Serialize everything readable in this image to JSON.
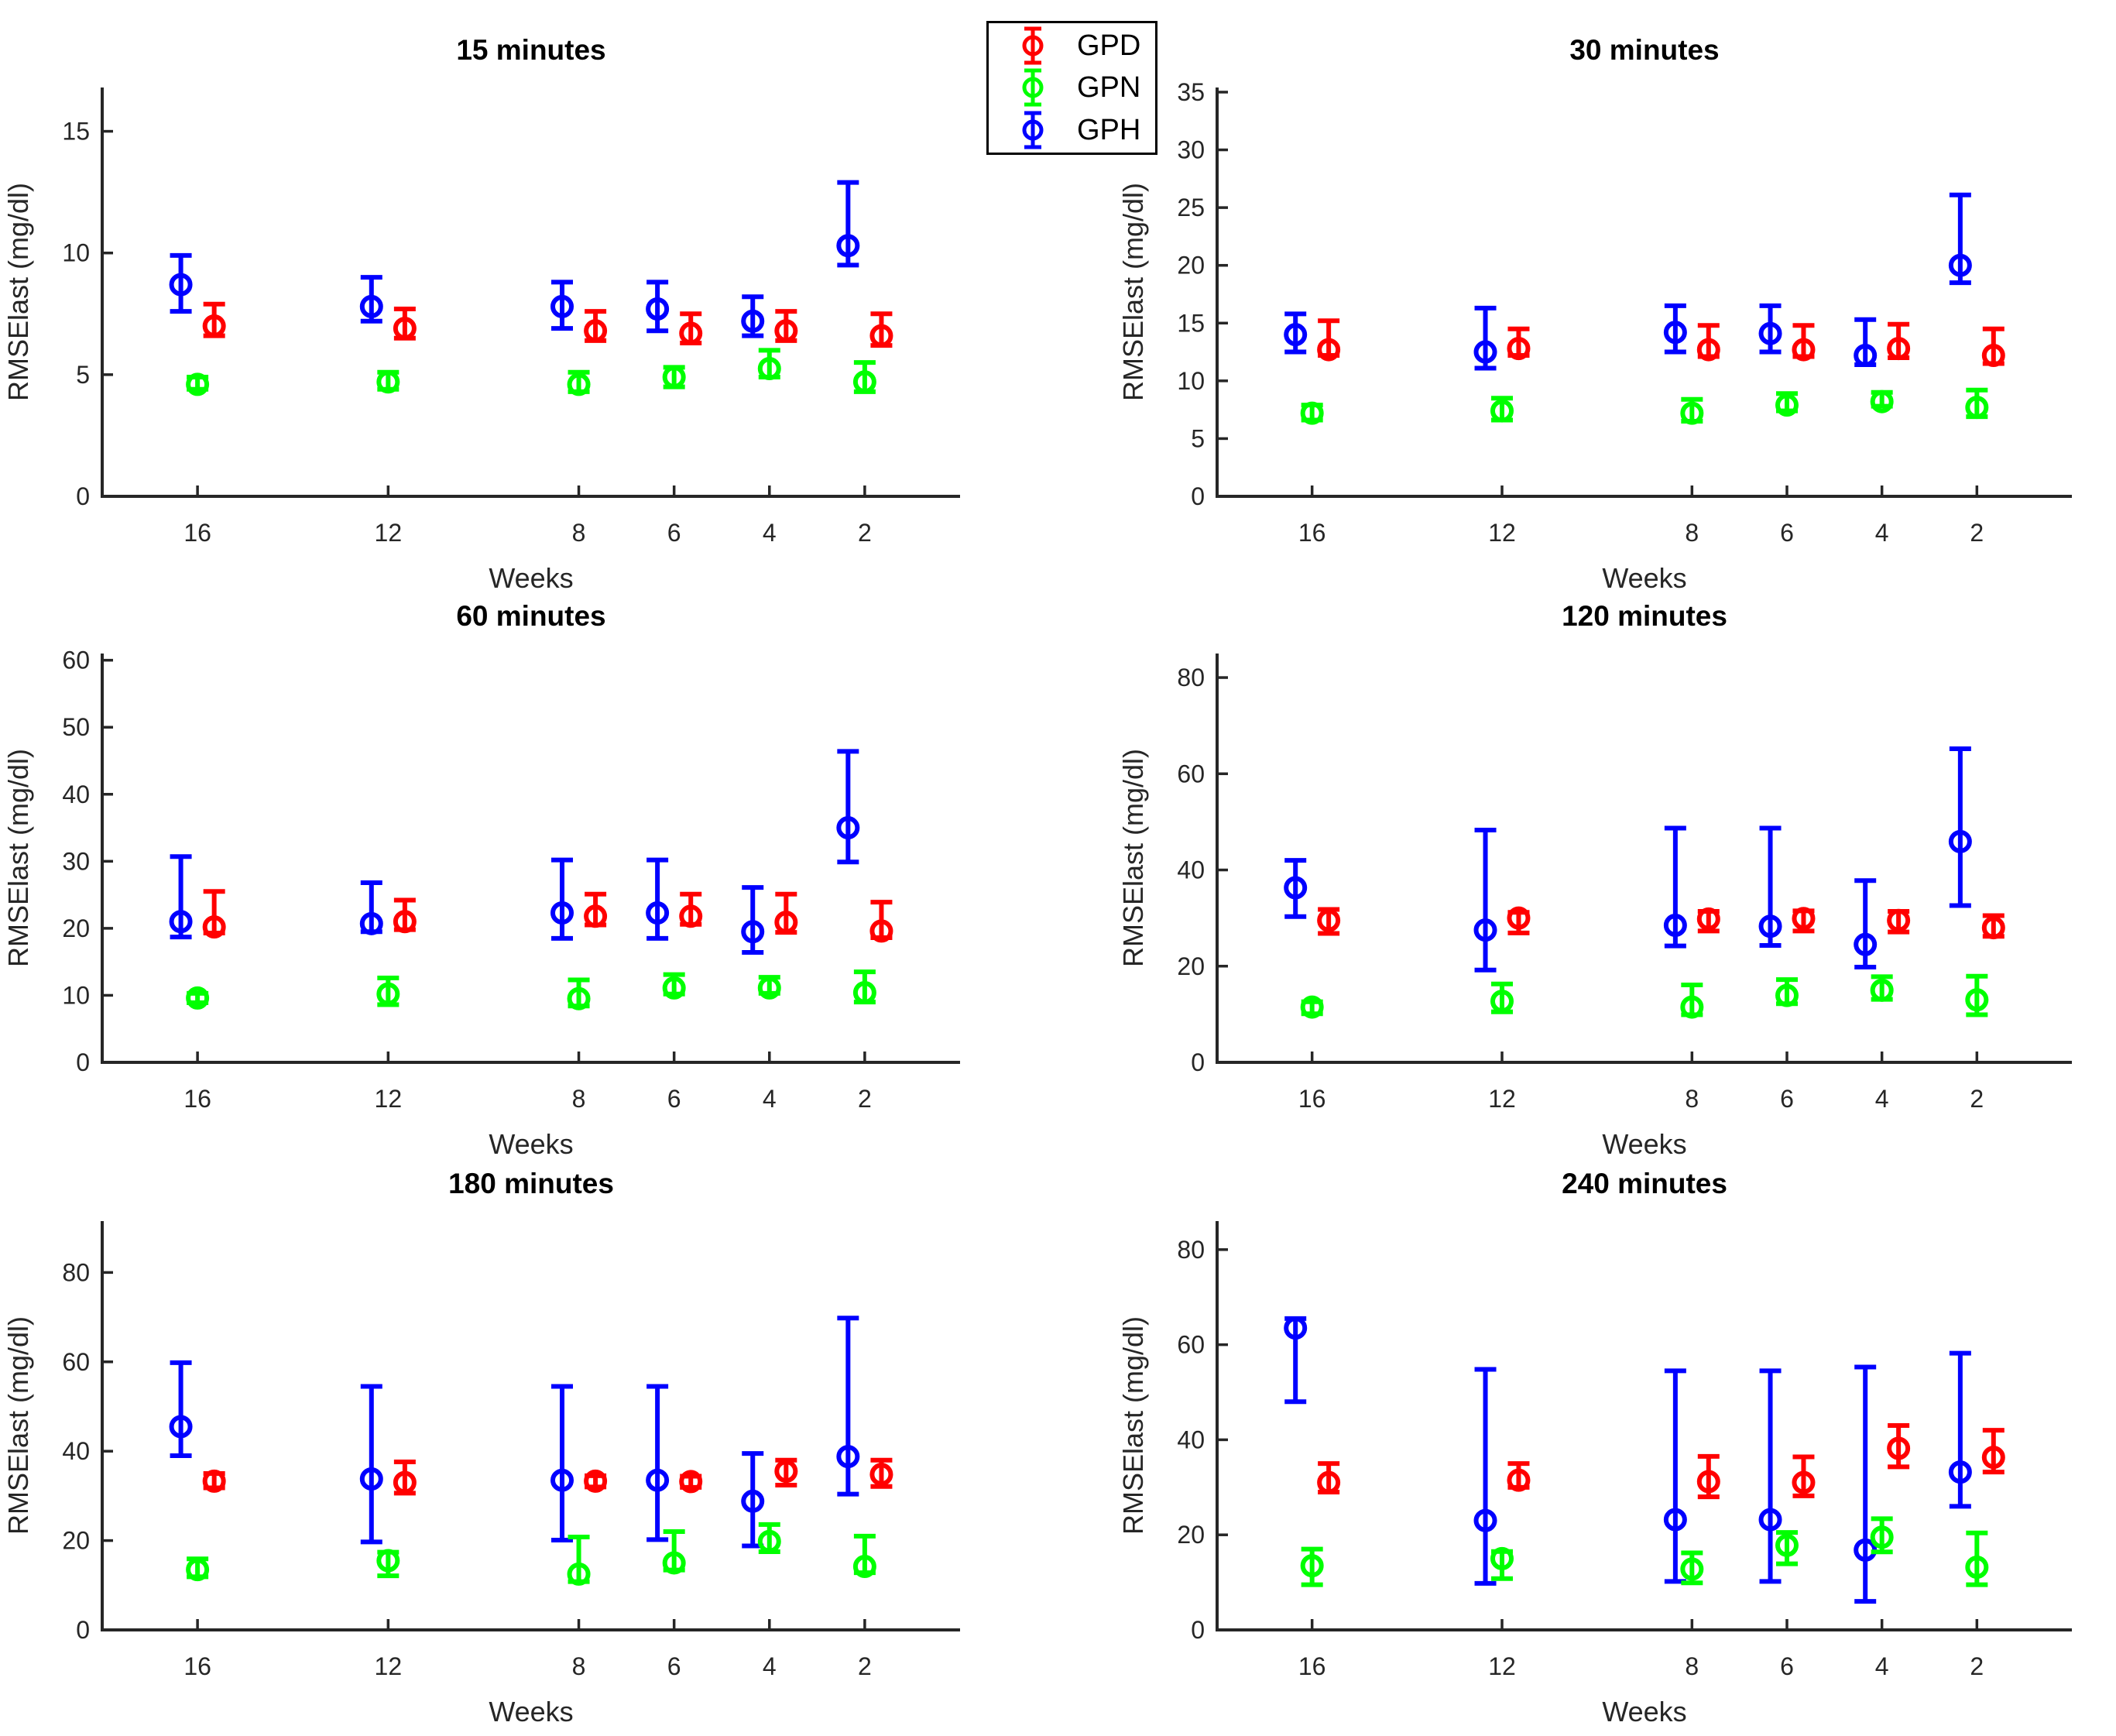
{
  "legend": {
    "entries": [
      {
        "label": "GPD",
        "color": "#ff0000"
      },
      {
        "label": "GPN",
        "color": "#00ff00"
      },
      {
        "label": "GPH",
        "color": "#0000ff"
      }
    ]
  },
  "text_color": "#262626",
  "title_color": "#000000",
  "chart_data": [
    {
      "type": "errorbar-scatter",
      "title": "15 minutes",
      "xlabel": "Weeks",
      "ylabel": "RMSElast (mg/dl)",
      "categories": [
        16,
        12,
        8,
        6,
        4,
        2
      ],
      "xlim": [
        18,
        0
      ],
      "xdir": "reverse",
      "ylim": [
        0,
        16.8
      ],
      "yticks": [
        0,
        5,
        10,
        15
      ],
      "grid": false,
      "series": [
        {
          "name": "GPD",
          "color": "#ff0000",
          "x_offset_weeks": -0.35,
          "y": [
            7.0,
            6.9,
            6.8,
            6.7,
            6.8,
            6.6
          ],
          "lo": [
            6.6,
            6.5,
            6.4,
            6.3,
            6.4,
            6.2
          ],
          "hi": [
            7.9,
            7.7,
            7.6,
            7.5,
            7.6,
            7.5
          ]
        },
        {
          "name": "GPN",
          "color": "#00ff00",
          "x_offset_weeks": 0,
          "y": [
            4.6,
            4.7,
            4.6,
            4.9,
            5.25,
            4.7
          ],
          "lo": [
            4.4,
            4.4,
            4.3,
            4.5,
            4.9,
            4.3
          ],
          "hi": [
            4.9,
            5.1,
            5.1,
            5.3,
            6.0,
            5.5
          ]
        },
        {
          "name": "GPH",
          "color": "#0000ff",
          "x_offset_weeks": 0.35,
          "y": [
            8.7,
            7.8,
            7.8,
            7.7,
            7.2,
            10.3
          ],
          "lo": [
            7.6,
            7.2,
            6.9,
            6.8,
            6.6,
            9.5
          ],
          "hi": [
            9.9,
            9.0,
            8.8,
            8.8,
            8.2,
            12.9
          ]
        }
      ]
    },
    {
      "type": "errorbar-scatter",
      "title": "30 minutes",
      "xlabel": "Weeks",
      "ylabel": "RMSElast (mg/dl)",
      "categories": [
        16,
        12,
        8,
        6,
        4,
        2
      ],
      "xlim": [
        18,
        0
      ],
      "xdir": "reverse",
      "ylim": [
        0,
        35.4
      ],
      "yticks": [
        0,
        5,
        10,
        15,
        20,
        25,
        30,
        35
      ],
      "grid": false,
      "series": [
        {
          "name": "GPD",
          "color": "#ff0000",
          "x_offset_weeks": -0.35,
          "y": [
            12.7,
            12.8,
            12.7,
            12.7,
            12.8,
            12.2
          ],
          "lo": [
            12.2,
            12.2,
            12.1,
            12.1,
            12.0,
            11.5
          ],
          "hi": [
            15.2,
            14.5,
            14.8,
            14.8,
            14.9,
            14.5
          ]
        },
        {
          "name": "GPN",
          "color": "#00ff00",
          "x_offset_weeks": 0,
          "y": [
            7.2,
            7.4,
            7.2,
            7.9,
            8.2,
            7.7
          ],
          "lo": [
            6.6,
            6.6,
            6.5,
            7.4,
            7.8,
            6.9
          ],
          "hi": [
            7.9,
            8.5,
            8.4,
            8.9,
            9.0,
            9.2
          ]
        },
        {
          "name": "GPH",
          "color": "#0000ff",
          "x_offset_weeks": 0.35,
          "y": [
            14.0,
            12.5,
            14.2,
            14.1,
            12.2,
            20.0
          ],
          "lo": [
            12.5,
            11.1,
            12.5,
            12.5,
            11.4,
            18.5
          ],
          "hi": [
            15.8,
            16.3,
            16.5,
            16.5,
            15.3,
            26.1
          ]
        }
      ]
    },
    {
      "type": "errorbar-scatter",
      "title": "60 minutes",
      "xlabel": "Weeks",
      "ylabel": "RMSElast (mg/dl)",
      "categories": [
        16,
        12,
        8,
        6,
        4,
        2
      ],
      "xlim": [
        18,
        0
      ],
      "xdir": "reverse",
      "ylim": [
        0,
        61
      ],
      "yticks": [
        0,
        10,
        20,
        30,
        40,
        50,
        60
      ],
      "grid": false,
      "series": [
        {
          "name": "GPD",
          "color": "#ff0000",
          "x_offset_weeks": -0.35,
          "y": [
            20.2,
            21.0,
            21.8,
            21.8,
            20.9,
            19.6
          ],
          "lo": [
            19.3,
            19.8,
            20.5,
            20.6,
            19.4,
            18.6
          ],
          "hi": [
            25.5,
            24.2,
            25.1,
            25.1,
            25.1,
            23.9
          ]
        },
        {
          "name": "GPN",
          "color": "#00ff00",
          "x_offset_weeks": 0,
          "y": [
            9.6,
            10.2,
            9.5,
            11.1,
            11.1,
            10.4
          ],
          "lo": [
            8.9,
            8.6,
            8.4,
            10.2,
            10.3,
            9.0
          ],
          "hi": [
            10.3,
            12.6,
            12.3,
            13.1,
            12.7,
            13.5
          ]
        },
        {
          "name": "GPH",
          "color": "#0000ff",
          "x_offset_weeks": 0.35,
          "y": [
            21.0,
            20.7,
            22.3,
            22.3,
            19.5,
            35.0
          ],
          "lo": [
            18.7,
            19.5,
            18.5,
            18.5,
            16.4,
            29.9
          ],
          "hi": [
            30.7,
            26.8,
            30.2,
            30.2,
            26.1,
            46.4
          ]
        }
      ]
    },
    {
      "type": "errorbar-scatter",
      "title": "120 minutes",
      "xlabel": "Weeks",
      "ylabel": "RMSElast (mg/dl)",
      "categories": [
        16,
        12,
        8,
        6,
        4,
        2
      ],
      "xlim": [
        18,
        0
      ],
      "xdir": "reverse",
      "ylim": [
        0,
        85
      ],
      "yticks": [
        0,
        20,
        40,
        60,
        80
      ],
      "grid": false,
      "series": [
        {
          "name": "GPD",
          "color": "#ff0000",
          "x_offset_weeks": -0.35,
          "y": [
            29.5,
            30.0,
            29.8,
            29.9,
            29.5,
            28.0
          ],
          "lo": [
            26.8,
            26.9,
            27.3,
            27.3,
            27.1,
            26.2
          ],
          "hi": [
            31.8,
            31.2,
            31.4,
            31.5,
            31.4,
            30.5
          ]
        },
        {
          "name": "GPN",
          "color": "#00ff00",
          "x_offset_weeks": 0,
          "y": [
            11.5,
            12.7,
            11.5,
            13.9,
            15.0,
            13.0
          ],
          "lo": [
            10.1,
            10.5,
            9.9,
            12.2,
            13.1,
            9.9
          ],
          "hi": [
            12.6,
            16.3,
            16.1,
            17.2,
            17.8,
            17.9
          ]
        },
        {
          "name": "GPH",
          "color": "#0000ff",
          "x_offset_weeks": 0.35,
          "y": [
            36.3,
            27.5,
            28.5,
            28.3,
            24.5,
            45.9
          ],
          "lo": [
            30.3,
            19.2,
            24.2,
            24.3,
            19.8,
            32.6
          ],
          "hi": [
            42.0,
            48.3,
            48.7,
            48.7,
            37.8,
            65.2
          ]
        }
      ]
    },
    {
      "type": "errorbar-scatter",
      "title": "180 minutes",
      "xlabel": "Weeks",
      "ylabel": "RMSElast (mg/dl)",
      "categories": [
        16,
        12,
        8,
        6,
        4,
        2
      ],
      "xlim": [
        18,
        0
      ],
      "xdir": "reverse",
      "ylim": [
        0,
        91.5
      ],
      "yticks": [
        0,
        20,
        40,
        60,
        80
      ],
      "grid": false,
      "series": [
        {
          "name": "GPD",
          "color": "#ff0000",
          "x_offset_weeks": -0.35,
          "y": [
            33.3,
            33.0,
            33.3,
            33.2,
            35.5,
            34.8
          ],
          "lo": [
            31.8,
            30.6,
            32.0,
            31.9,
            32.4,
            32.1
          ],
          "hi": [
            35.0,
            37.6,
            34.5,
            34.4,
            38.0,
            38.0
          ]
        },
        {
          "name": "GPN",
          "color": "#00ff00",
          "x_offset_weeks": 0,
          "y": [
            13.5,
            15.5,
            12.5,
            15.0,
            19.8,
            14.2
          ],
          "lo": [
            11.9,
            12.1,
            10.8,
            13.4,
            17.5,
            12.8
          ],
          "hi": [
            15.9,
            17.4,
            20.8,
            22.0,
            23.6,
            21.0
          ]
        },
        {
          "name": "GPH",
          "color": "#0000ff",
          "x_offset_weeks": 0.35,
          "y": [
            45.5,
            33.8,
            33.5,
            33.5,
            28.8,
            38.8
          ],
          "lo": [
            39.0,
            19.7,
            20.1,
            20.2,
            18.8,
            30.4
          ],
          "hi": [
            59.8,
            54.5,
            54.5,
            54.5,
            39.5,
            69.8
          ]
        }
      ]
    },
    {
      "type": "errorbar-scatter",
      "title": "240 minutes",
      "xlabel": "Weeks",
      "ylabel": "RMSElast (mg/dl)",
      "categories": [
        16,
        12,
        8,
        6,
        4,
        2
      ],
      "xlim": [
        18,
        0
      ],
      "xdir": "reverse",
      "ylim": [
        0,
        86
      ],
      "yticks": [
        0,
        20,
        40,
        60,
        80
      ],
      "grid": false,
      "series": [
        {
          "name": "GPD",
          "color": "#ff0000",
          "x_offset_weeks": -0.35,
          "y": [
            31.0,
            31.5,
            31.2,
            31.0,
            38.2,
            36.3
          ],
          "lo": [
            29.0,
            30.0,
            28.0,
            28.2,
            34.3,
            33.2
          ],
          "hi": [
            35.0,
            35.0,
            36.5,
            36.4,
            43.0,
            42.0
          ]
        },
        {
          "name": "GPN",
          "color": "#00ff00",
          "x_offset_weeks": 0,
          "y": [
            13.5,
            15.0,
            12.8,
            17.8,
            19.5,
            13.2
          ],
          "lo": [
            9.5,
            10.8,
            9.9,
            13.9,
            16.4,
            9.5
          ],
          "hi": [
            17.0,
            16.5,
            16.2,
            20.5,
            23.4,
            20.4
          ]
        },
        {
          "name": "GPH",
          "color": "#0000ff",
          "x_offset_weeks": 0.35,
          "y": [
            63.5,
            23.0,
            23.2,
            23.2,
            16.8,
            33.2
          ],
          "lo": [
            48.0,
            9.8,
            10.2,
            10.2,
            6.0,
            26.0
          ],
          "hi": [
            65.5,
            54.8,
            54.5,
            54.5,
            55.3,
            58.2
          ]
        }
      ]
    }
  ]
}
